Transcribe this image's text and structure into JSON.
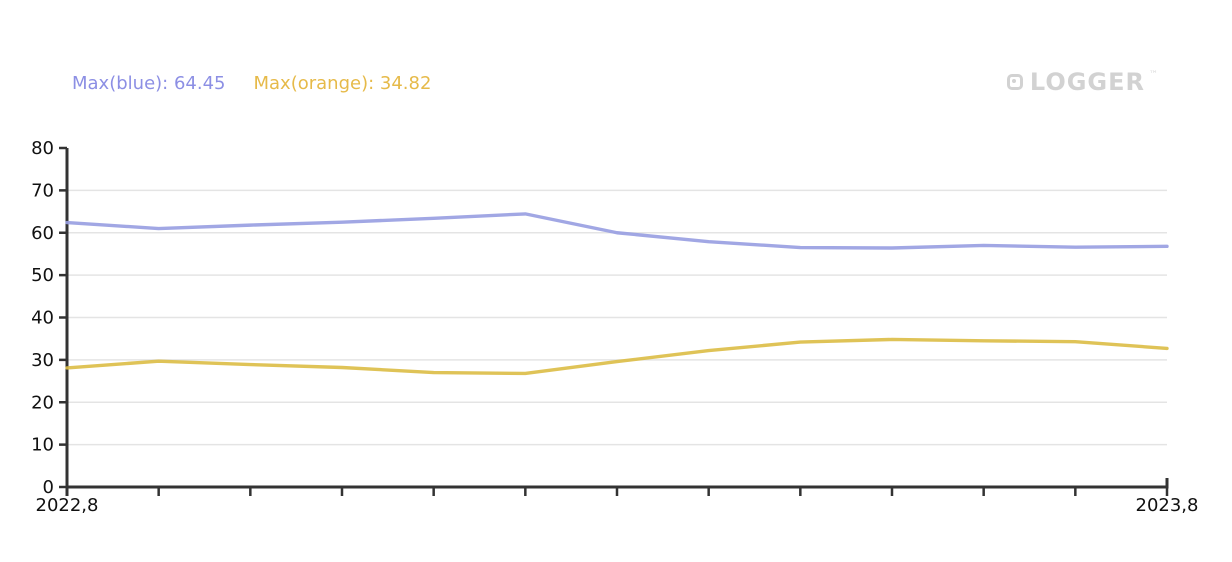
{
  "legend": {
    "items": [
      {
        "name": "blue",
        "text": "Max(blue): 64.45"
      },
      {
        "name": "orange",
        "text": "Max(orange): 34.82"
      }
    ]
  },
  "logo": {
    "text": "LOGGER",
    "tm": "™",
    "icon": "rounded-square-icon"
  },
  "colors": {
    "background": "#ffffff",
    "axis": "#333333",
    "grid": "#e4e4e4",
    "tick_label": "#111111",
    "legend_blue": "#8c8fe4",
    "legend_orange": "#e6ba49",
    "blue_line": "#979de1",
    "orange_line": "#dcbd45",
    "logo_gray": "#d2d2d2"
  },
  "chart_data": {
    "type": "line",
    "title": "",
    "xlabel": "",
    "ylabel": "",
    "x_axis": {
      "start_label": "2022,8",
      "end_label": "2023,8",
      "ticks_count": 13
    },
    "y_ticks": [
      0,
      10,
      20,
      30,
      40,
      50,
      60,
      70,
      80
    ],
    "ylim": [
      0,
      80
    ],
    "grid": "horizontal",
    "legend_position": "top-left",
    "series": [
      {
        "name": "blue",
        "color": "#979de1",
        "max": 64.45,
        "values": [
          62.4,
          61.0,
          61.8,
          62.5,
          63.4,
          64.45,
          60.0,
          57.9,
          56.5,
          56.4,
          57.0,
          56.6,
          56.8
        ]
      },
      {
        "name": "orange",
        "color": "#dcbd45",
        "max": 34.82,
        "values": [
          28.1,
          29.7,
          28.9,
          28.2,
          27.0,
          26.8,
          29.6,
          32.2,
          34.2,
          34.82,
          34.5,
          34.3,
          32.7
        ]
      }
    ]
  }
}
